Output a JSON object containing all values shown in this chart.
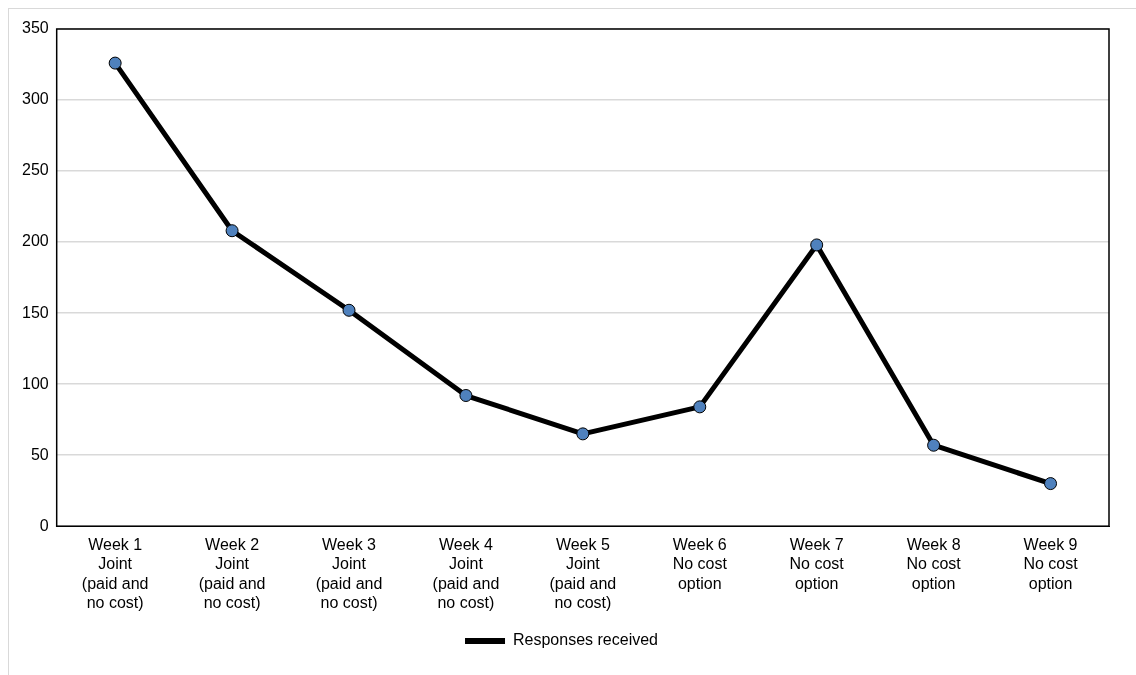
{
  "chart_data": {
    "type": "line",
    "categories": [
      "Week 1\nJoint\n(paid and\nno cost)",
      "Week 2\nJoint\n(paid and\nno cost)",
      "Week 3\nJoint\n(paid and\nno cost)",
      "Week 4\nJoint\n(paid and\nno cost)",
      "Week 5\nJoint\n(paid and\nno cost)",
      "Week 6\nNo cost\noption",
      "Week 7\nNo cost\noption",
      "Week 8\nNo cost\noption",
      "Week 9\nNo cost\noption"
    ],
    "series": [
      {
        "name": "Responses received",
        "color": "#4f81bd",
        "values": [
          326,
          208,
          152,
          92,
          65,
          84,
          198,
          57,
          30
        ]
      }
    ],
    "ylim": [
      0,
      350
    ],
    "yticks": [
      0,
      50,
      100,
      150,
      200,
      250,
      300,
      350
    ],
    "grid": "y",
    "legend": "bottom",
    "marker": "circle",
    "line_style": "solid"
  }
}
